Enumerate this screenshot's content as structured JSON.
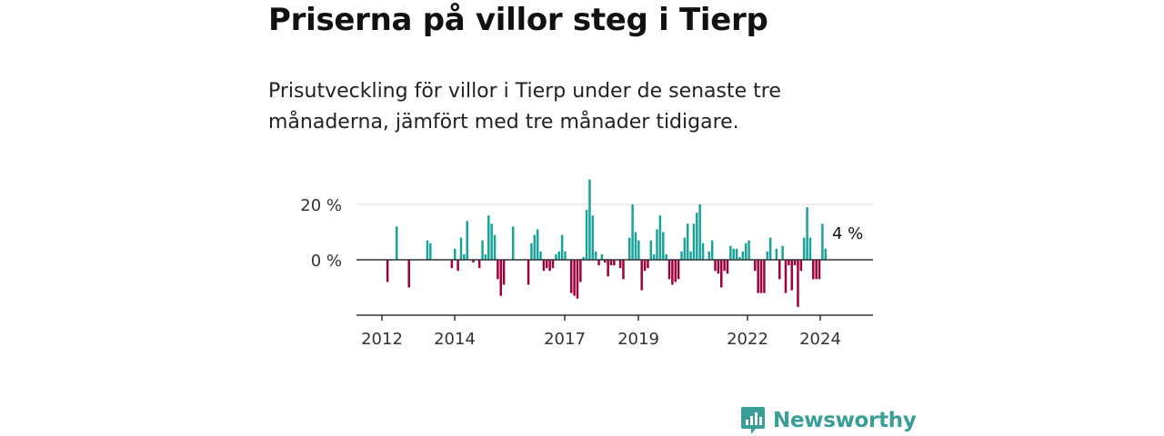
{
  "title": "Priserna på villor steg i Tierp",
  "subtitle": "Prisutveckling för villor i Tierp under de senaste tre månaderna, jämfört med tre månader tidigare.",
  "brand": {
    "name": "Newsworthy",
    "color": "#3a9e98",
    "icon": "newsworthy-logo-icon"
  },
  "chart_data": {
    "type": "bar",
    "x_start": "2012-01",
    "frequency": "monthly",
    "values": [
      null,
      null,
      null,
      null,
      null,
      null,
      null,
      null,
      -8,
      null,
      null,
      12,
      null,
      null,
      null,
      -10,
      null,
      null,
      null,
      null,
      null,
      null,
      null,
      null,
      null,
      null,
      null,
      null,
      null,
      null,
      null,
      null,
      null,
      null,
      null,
      null,
      null,
      null,
      null,
      null,
      null,
      null,
      null,
      null,
      null,
      null,
      null,
      null,
      null,
      null,
      null,
      null,
      null,
      null,
      null,
      null,
      null,
      null,
      null,
      null,
      null,
      null,
      null,
      null,
      null,
      null,
      null,
      null,
      null,
      null,
      null,
      null,
      null,
      null,
      null,
      null,
      null,
      null,
      null,
      null,
      null,
      null,
      null,
      null,
      null,
      null,
      null,
      null,
      null,
      null,
      null,
      null,
      null,
      null,
      null,
      null,
      null,
      null,
      null,
      null,
      null,
      null,
      null,
      null,
      null,
      null,
      null,
      null,
      null,
      null,
      null,
      null,
      null,
      null,
      null,
      null,
      null,
      null,
      null,
      null,
      null,
      null,
      null,
      null,
      null,
      null,
      null,
      null,
      null,
      null,
      null,
      null,
      null,
      null,
      null,
      null,
      null,
      null,
      null,
      null,
      null,
      null,
      null,
      null,
      null,
      null,
      null,
      null,
      null,
      null,
      null
    ],
    "series": [
      {
        "start": "2013-10",
        "values": [
          7,
          6
        ]
      },
      {
        "start": "2014-06",
        "values": [
          -3,
          4,
          -4,
          8,
          2,
          14,
          0,
          -1,
          0,
          -3,
          7,
          2,
          16,
          13,
          9,
          -7,
          -13,
          -9,
          0,
          0,
          12,
          0,
          0,
          0,
          0,
          -9,
          6,
          9,
          11,
          3,
          -4,
          -3,
          -4,
          -3,
          2,
          3,
          9,
          3,
          0,
          -12,
          -13,
          -14,
          -8,
          1,
          18,
          29,
          16,
          3,
          -2,
          2,
          -1,
          -6,
          -2,
          -2,
          0,
          -3,
          -7,
          0,
          8,
          20,
          10,
          7,
          -11,
          -4,
          -3,
          7,
          2,
          11,
          16,
          10,
          2,
          -7,
          -9,
          -8,
          -7,
          3,
          8,
          13,
          3,
          13,
          17,
          20,
          6,
          0,
          3,
          7,
          -4,
          -5,
          -10,
          -4,
          -5,
          5,
          4,
          4,
          1,
          3,
          6,
          7,
          0,
          -4,
          -12,
          -12,
          -12,
          3,
          8,
          0,
          4,
          -7,
          5,
          -12,
          -2,
          -11,
          -2,
          -17,
          -4,
          8,
          19,
          8,
          -7,
          -7,
          -7,
          13,
          4
        ]
      }
    ],
    "last_label": "4 %",
    "yticks": [
      0,
      20
    ],
    "ytick_labels": [
      "0 %",
      "20 %"
    ],
    "ylim": [
      -20,
      30
    ],
    "xticks": [
      "2012",
      "2014",
      "2017",
      "2019",
      "2022",
      "2024"
    ],
    "positive_color": "#1aa39a",
    "negative_color": "#a0003c",
    "grid": true
  }
}
